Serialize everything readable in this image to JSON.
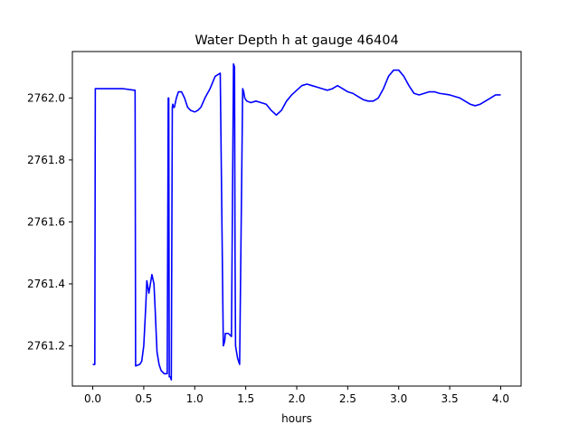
{
  "chart_data": {
    "type": "line",
    "title": "Water Depth h at gauge 46404",
    "xlabel": "hours",
    "ylabel": "",
    "xlim": [
      -0.2,
      4.2
    ],
    "ylim": [
      2761.07,
      2762.15
    ],
    "xticks": [
      0.0,
      0.5,
      1.0,
      1.5,
      2.0,
      2.5,
      3.0,
      3.5,
      4.0
    ],
    "xtick_labels": [
      "0.0",
      "0.5",
      "1.0",
      "1.5",
      "2.0",
      "2.5",
      "3.0",
      "3.5",
      "4.0"
    ],
    "yticks": [
      2761.2,
      2761.4,
      2761.6,
      2761.8,
      2762.0
    ],
    "ytick_labels": [
      "2761.2",
      "2761.4",
      "2761.6",
      "2761.8",
      "2762.0"
    ],
    "grid": false,
    "series": [
      {
        "name": "",
        "color": "#0000ff",
        "x": [
          0.0,
          0.02,
          0.025,
          0.1,
          0.2,
          0.3,
          0.41,
          0.415,
          0.42,
          0.46,
          0.48,
          0.5,
          0.52,
          0.53,
          0.55,
          0.57,
          0.58,
          0.6,
          0.61,
          0.63,
          0.65,
          0.67,
          0.7,
          0.73,
          0.74,
          0.745,
          0.75,
          0.76,
          0.77,
          0.78,
          0.785,
          0.79,
          0.8,
          0.82,
          0.84,
          0.87,
          0.9,
          0.93,
          0.96,
          1.0,
          1.03,
          1.06,
          1.1,
          1.15,
          1.2,
          1.25,
          1.28,
          1.29,
          1.295,
          1.3,
          1.33,
          1.36,
          1.38,
          1.39,
          1.395,
          1.4,
          1.41,
          1.415,
          1.42,
          1.44,
          1.47,
          1.48,
          1.485,
          1.49,
          1.51,
          1.55,
          1.6,
          1.65,
          1.7,
          1.75,
          1.8,
          1.85,
          1.9,
          1.95,
          2.0,
          2.05,
          2.1,
          2.15,
          2.2,
          2.25,
          2.3,
          2.35,
          2.4,
          2.45,
          2.5,
          2.55,
          2.6,
          2.65,
          2.7,
          2.75,
          2.8,
          2.85,
          2.9,
          2.95,
          3.0,
          3.05,
          3.1,
          3.15,
          3.2,
          3.25,
          3.3,
          3.35,
          3.4,
          3.5,
          3.6,
          3.65,
          3.7,
          3.75,
          3.8,
          3.85,
          3.9,
          3.95,
          4.0
        ],
        "y": [
          2761.14,
          2761.14,
          2762.03,
          2762.03,
          2762.03,
          2762.03,
          2762.025,
          2762.025,
          2761.135,
          2761.14,
          2761.15,
          2761.2,
          2761.33,
          2761.41,
          2761.37,
          2761.41,
          2761.43,
          2761.4,
          2761.33,
          2761.18,
          2761.14,
          2761.12,
          2761.11,
          2761.11,
          2762.0,
          2762.0,
          2761.1,
          2761.1,
          2761.09,
          2761.97,
          2761.98,
          2761.97,
          2761.97,
          2762.0,
          2762.02,
          2762.02,
          2762.0,
          2761.97,
          2761.96,
          2761.955,
          2761.96,
          2761.97,
          2762.0,
          2762.03,
          2762.07,
          2762.08,
          2761.2,
          2761.21,
          2761.22,
          2761.24,
          2761.24,
          2761.23,
          2762.11,
          2762.1,
          2761.5,
          2761.2,
          2761.18,
          2761.17,
          2761.16,
          2761.14,
          2762.03,
          2762.02,
          2762.01,
          2762.0,
          2761.99,
          2761.985,
          2761.99,
          2761.985,
          2761.98,
          2761.96,
          2761.945,
          2761.96,
          2761.99,
          2762.01,
          2762.025,
          2762.04,
          2762.045,
          2762.04,
          2762.035,
          2762.03,
          2762.025,
          2762.03,
          2762.04,
          2762.03,
          2762.02,
          2762.015,
          2762.005,
          2761.995,
          2761.99,
          2761.99,
          2762.0,
          2762.03,
          2762.07,
          2762.09,
          2762.09,
          2762.07,
          2762.04,
          2762.015,
          2762.01,
          2762.015,
          2762.02,
          2762.02,
          2762.015,
          2762.01,
          2762.0,
          2761.99,
          2761.98,
          2761.975,
          2761.98,
          2761.99,
          2762.0,
          2762.01,
          2762.01
        ]
      }
    ]
  }
}
